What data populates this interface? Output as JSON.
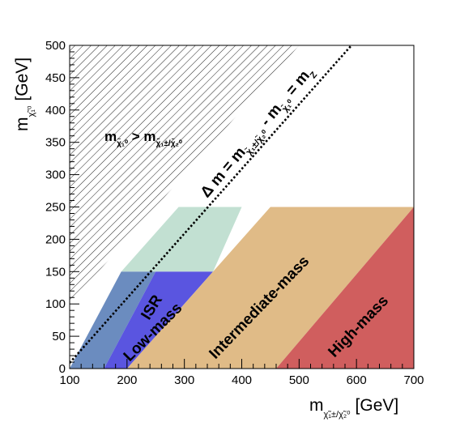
{
  "chart_data": {
    "type": "area",
    "xlabel": {
      "main": "m",
      "sub": "χ̃₁±/χ̃₂⁰",
      "unit": "[GeV]"
    },
    "ylabel": {
      "main": "m",
      "sub": "χ̃₁⁰",
      "unit": "[GeV]"
    },
    "xlim": [
      100,
      700
    ],
    "ylim": [
      0,
      500
    ],
    "x_ticks": [
      100,
      200,
      300,
      400,
      500,
      600,
      700
    ],
    "y_ticks": [
      0,
      50,
      100,
      150,
      200,
      250,
      300,
      350,
      400,
      450,
      500
    ],
    "grid": false,
    "colors": {
      "isr": "#6b8cbf",
      "low_mass": "#5a55e0",
      "low_mass_ext": "#c2e0d2",
      "intermediate": "#e0bb87",
      "high_mass": "#d05e5e",
      "hatch": "#222222",
      "dotted_line": "#000000"
    },
    "regions": [
      {
        "name": "ISR",
        "color_key": "isr",
        "polygon": [
          [
            100,
            0
          ],
          [
            160,
            0
          ],
          [
            250,
            150
          ],
          [
            190,
            150
          ]
        ]
      },
      {
        "name": "Low-mass",
        "color_key": "low_mass",
        "polygon": [
          [
            160,
            0
          ],
          [
            200,
            0
          ],
          [
            350,
            150
          ],
          [
            250,
            150
          ]
        ]
      },
      {
        "name": "",
        "color_key": "low_mass_ext",
        "polygon": [
          [
            190,
            150
          ],
          [
            350,
            150
          ],
          [
            400,
            250
          ],
          [
            290,
            250
          ]
        ]
      },
      {
        "name": "Intermediate-mass",
        "color_key": "intermediate",
        "polygon": [
          [
            200,
            0
          ],
          [
            460,
            0
          ],
          [
            700,
            250
          ],
          [
            450,
            250
          ]
        ]
      },
      {
        "name": "High-mass",
        "color_key": "high_mass",
        "polygon": [
          [
            460,
            0
          ],
          [
            700,
            0
          ],
          [
            700,
            250
          ]
        ]
      }
    ],
    "forbidden_region": {
      "condition": "m_χ̃₁⁰ > m_χ̃₁±/χ̃₂⁰",
      "boundary": [
        [
          100,
          100
        ],
        [
          500,
          500
        ]
      ]
    },
    "kinematic_line": {
      "label": "Δ m = m_χ̃₁±/χ̃₂⁰ − m_χ̃₁⁰ = m_Z",
      "x": [
        100,
        600
      ],
      "y": [
        8.8,
        508.8
      ]
    },
    "labels": {
      "isr": "ISR",
      "low_mass": "Low-mass",
      "intermediate": "Intermediate-mass",
      "high_mass": "High-mass",
      "forbidden_main_a": "m",
      "forbidden_sub_a": "χ̃₁⁰",
      "forbidden_gt": " > m",
      "forbidden_sub_b": "χ̃₁±/χ̃₂⁰",
      "line_delta": "Δ m = m",
      "line_sub_a": "χ̃₁±/χ̃₂⁰",
      "line_minus": " - m",
      "line_sub_b": "χ̃₁⁰",
      "line_eq": " = m",
      "line_sub_z": "Z"
    }
  }
}
